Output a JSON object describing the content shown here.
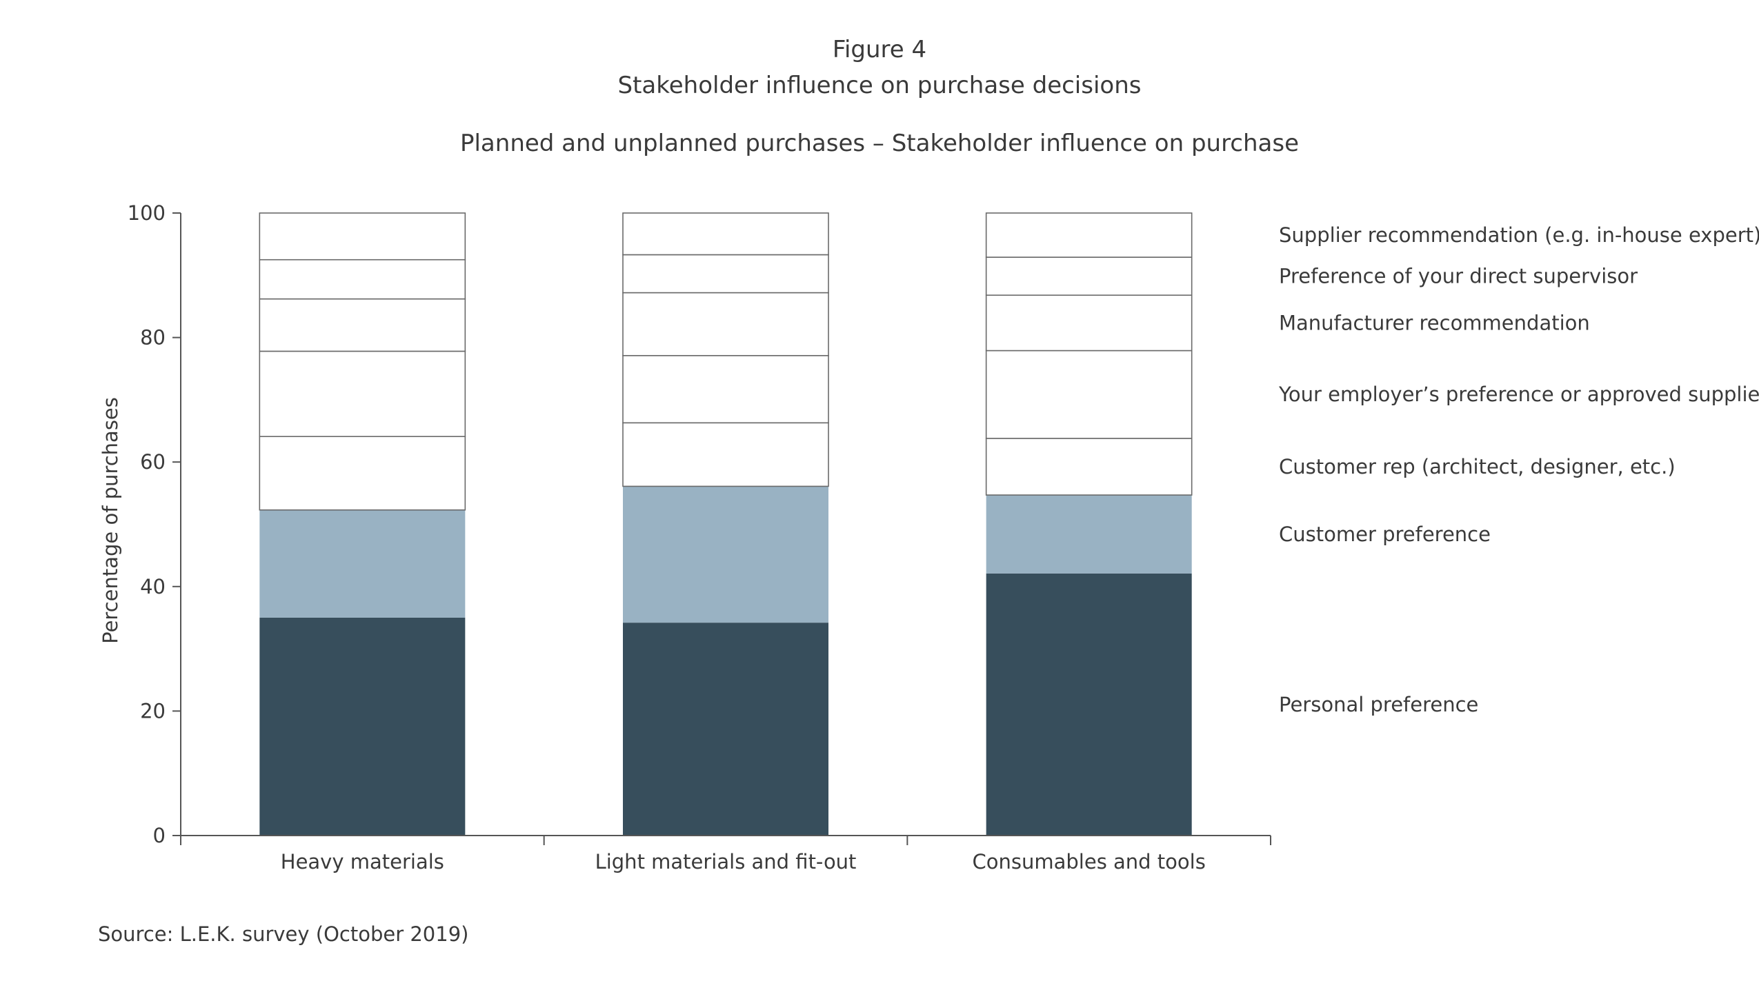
{
  "figure_label": "Figure 4",
  "title": "Stakeholder influence on purchase decisions",
  "subtitle": "Planned and unplanned purchases – Stakeholder influence on purchase",
  "source": "Source: L.E.K. survey (October 2019)",
  "chart_data": {
    "type": "bar",
    "stacked": true,
    "categories": [
      "Heavy materials",
      "Light materials and fit-out",
      "Consumables and tools"
    ],
    "ylabel": "Percentage of purchases",
    "xlabel": "",
    "ylim": [
      0,
      100
    ],
    "yticks": [
      0,
      20,
      40,
      60,
      80,
      100
    ],
    "legend_position": "right",
    "series": [
      {
        "name": "Personal preference",
        "color": "#374e5c",
        "values": [
          35,
          34.2,
          42.1
        ]
      },
      {
        "name": "Customer preference",
        "color": "#99b2c3",
        "values": [
          17.3,
          21.9,
          12.6
        ]
      },
      {
        "name": "Customer rep (architect, designer, etc.)",
        "color": "#ffffff",
        "values": [
          11.8,
          10.2,
          9.1
        ]
      },
      {
        "name": "Your employer’s preference or approved suppliers list",
        "color": "#ffffff",
        "values": [
          13.7,
          10.8,
          14.1
        ]
      },
      {
        "name": "Manufacturer recommendation",
        "color": "#ffffff",
        "values": [
          8.4,
          10.1,
          8.9
        ]
      },
      {
        "name": "Preference of your direct supervisor",
        "color": "#ffffff",
        "values": [
          6.3,
          6.1,
          6.1
        ]
      },
      {
        "name": "Supplier recommendation (e.g. in-house expert)",
        "color": "#ffffff",
        "values": [
          7.5,
          6.7,
          7.1
        ]
      }
    ]
  }
}
